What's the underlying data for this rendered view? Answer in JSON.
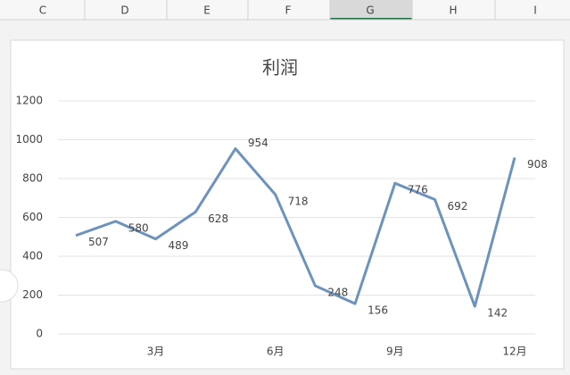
{
  "columns": [
    "C",
    "D",
    "E",
    "F",
    "G",
    "H",
    "I"
  ],
  "chart_data": {
    "type": "line",
    "title": "利润",
    "categories": [
      null,
      null,
      "3月",
      null,
      null,
      "6月",
      null,
      null,
      "9月",
      null,
      null,
      "12月"
    ],
    "values": [
      507,
      580,
      489,
      628,
      954,
      718,
      248,
      156,
      776,
      692,
      142,
      908
    ],
    "color": "#6b93bd",
    "ylim": [
      0,
      1200
    ],
    "yticks": [
      0,
      200,
      400,
      600,
      800,
      1000,
      1200
    ],
    "grid": true
  }
}
